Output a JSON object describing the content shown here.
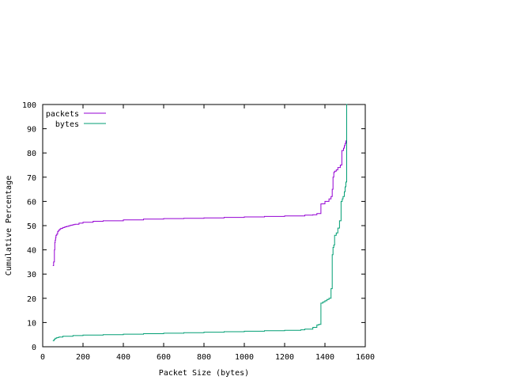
{
  "chart_data": {
    "type": "line",
    "title": "",
    "xlabel": "Packet Size (bytes)",
    "ylabel": "Cumulative Percentage",
    "xlim": [
      0,
      1600
    ],
    "ylim": [
      0,
      100
    ],
    "xticks": [
      0,
      200,
      400,
      600,
      800,
      1000,
      1200,
      1400,
      1600
    ],
    "yticks": [
      0,
      10,
      20,
      30,
      40,
      50,
      60,
      70,
      80,
      90,
      100
    ],
    "legend_position": "top-left",
    "grid": false,
    "step": true,
    "series": [
      {
        "name": "packets",
        "color": "#9400d3",
        "x": [
          50,
          54,
          58,
          60,
          62,
          64,
          66,
          70,
          74,
          78,
          82,
          86,
          90,
          100,
          110,
          120,
          130,
          140,
          150,
          160,
          180,
          200,
          250,
          300,
          400,
          500,
          600,
          700,
          800,
          900,
          1000,
          1100,
          1200,
          1300,
          1340,
          1360,
          1380,
          1400,
          1420,
          1430,
          1436,
          1440,
          1444,
          1448,
          1456,
          1464,
          1476,
          1484,
          1492,
          1496,
          1500,
          1504,
          1508,
          1510
        ],
        "y": [
          33.5,
          35,
          40,
          43,
          44,
          45,
          46,
          46.5,
          47.5,
          48,
          48.3,
          48.6,
          48.9,
          49.2,
          49.5,
          49.7,
          50,
          50.2,
          50.4,
          50.6,
          51,
          51.4,
          51.8,
          52,
          52.4,
          52.7,
          52.9,
          53.0,
          53.2,
          53.4,
          53.6,
          53.8,
          54.0,
          54.3,
          54.5,
          55,
          59,
          60,
          61,
          62,
          65,
          70,
          72,
          72.5,
          73,
          74,
          75,
          81,
          82,
          83,
          84,
          85,
          100,
          100
        ]
      },
      {
        "name": "bytes",
        "color": "#009e73",
        "x": [
          50,
          56,
          62,
          70,
          80,
          100,
          150,
          200,
          300,
          400,
          500,
          600,
          700,
          800,
          900,
          1000,
          1100,
          1200,
          1280,
          1300,
          1340,
          1360,
          1370,
          1380,
          1390,
          1400,
          1410,
          1420,
          1430,
          1436,
          1440,
          1444,
          1448,
          1456,
          1464,
          1472,
          1480,
          1486,
          1490,
          1496,
          1500,
          1504,
          1508,
          1510
        ],
        "y": [
          2.5,
          3,
          3.5,
          3.8,
          4,
          4.3,
          4.6,
          4.8,
          5.0,
          5.2,
          5.4,
          5.6,
          5.8,
          6.0,
          6.2,
          6.4,
          6.6,
          6.8,
          7.0,
          7.3,
          8,
          9,
          9.2,
          18,
          18.5,
          19,
          19.5,
          20,
          24,
          38,
          41,
          42,
          46,
          47,
          49,
          52,
          60,
          61,
          62,
          64,
          66,
          68,
          100,
          100
        ]
      }
    ]
  }
}
